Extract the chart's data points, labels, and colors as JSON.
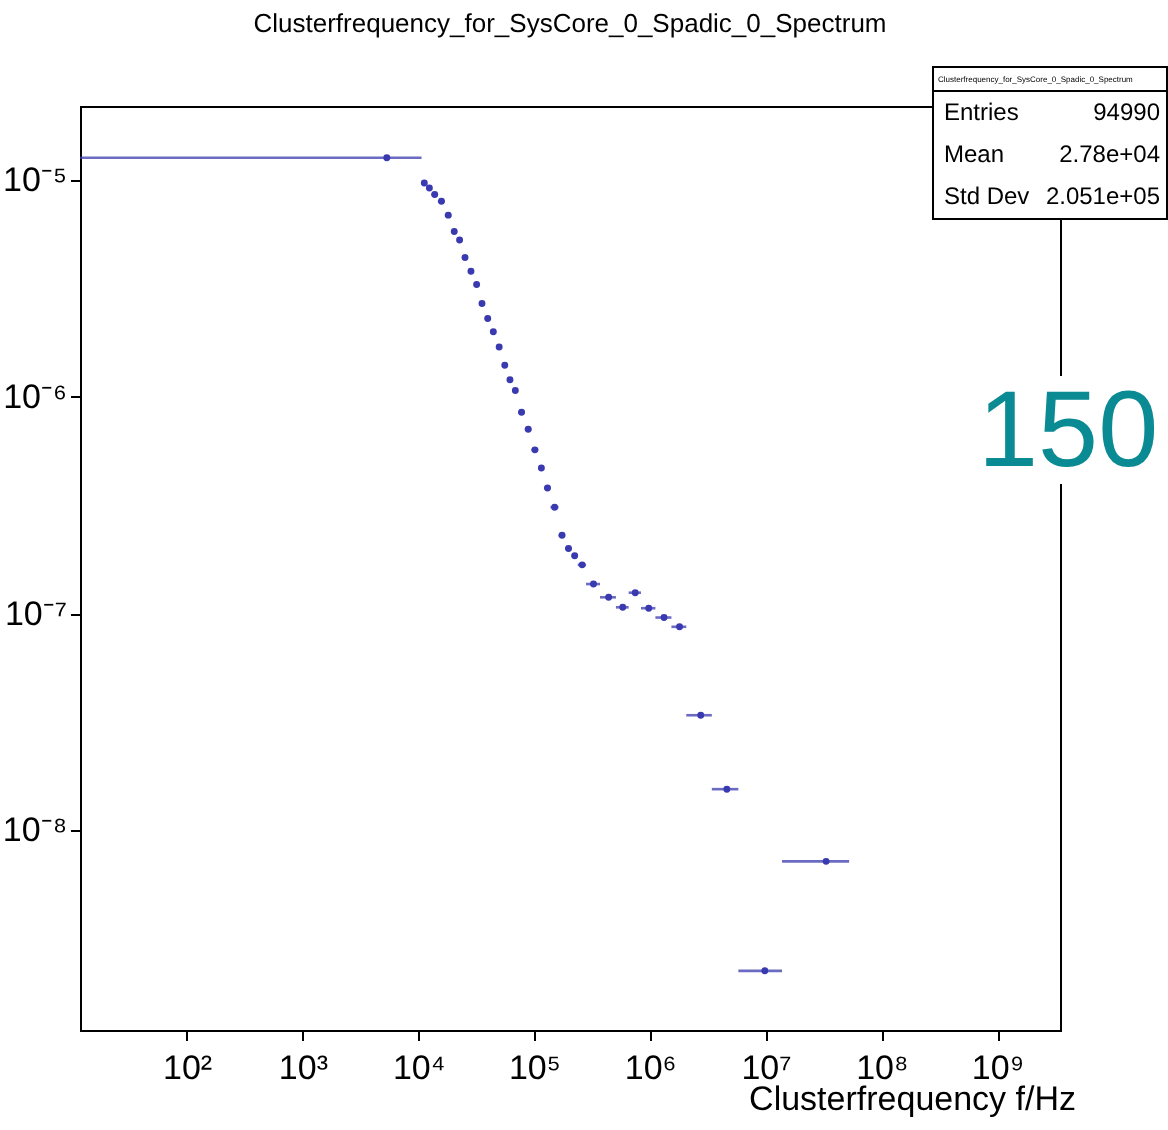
{
  "chart_data": {
    "type": "scatter",
    "title": "Clusterfrequency_for_SysCore_0_Spadic_0_Spectrum",
    "xlabel": "Clusterfrequency f/Hz",
    "annotations": [
      "Clusterfrequency_for_SysCore_0_Spadic_0_Spectrum",
      "Entries",
      "94990",
      "Mean",
      "2.78e+04",
      "Std Dev",
      "2.051e+05",
      "150"
    ],
    "x": [
      5360,
      11300.0,
      12500.0,
      13900.0,
      15900.0,
      18200.0,
      20500.0,
      22800.0,
      25400.0,
      28600.0,
      32000.0,
      35600.0,
      39900.0,
      44600.0,
      50100.0,
      56000.0,
      62100.0,
      69100.0,
      78200.0,
      89300.0,
      102000.0,
      116000.0,
      131000.0,
      151000.0,
      175000.0,
      199000.0,
      225000.0,
      261000.0,
      327000.0,
      442000.0,
      585000.0,
      750000.0,
      981000.0,
      1330000.0,
      1810000.0,
      2760000.0,
      4640000.0,
      9870000.0,
      33400000.0
    ],
    "values": [
      1.27e-05,
      9.7e-06,
      9.2e-06,
      8.6e-06,
      8e-06,
      6.9e-06,
      5.8e-06,
      5.3e-06,
      4.4e-06,
      3.8e-06,
      3.3e-06,
      2.7e-06,
      2.3e-06,
      2e-06,
      1.7e-06,
      1.4e-06,
      1.2e-06,
      1.07e-06,
      8.5e-07,
      7.1e-07,
      5.7e-07,
      4.7e-07,
      3.8e-07,
      3.1e-07,
      2.3e-07,
      2e-07,
      1.85e-07,
      1.68e-07,
      1.37e-07,
      1.19e-07,
      1.07e-07,
      1.25e-07,
      1.06e-07,
      9.6e-08,
      8.7e-08,
      3.4e-08,
      1.55e-08,
      2.25e-09,
      7.2e-09
    ],
    "xerrors": [
      [
        12,
        10700.0
      ],
      [
        10700.0,
        11900.0
      ],
      [
        11900.0,
        13000.0
      ],
      [
        13000.0,
        14800.0
      ],
      [
        14800.0,
        17000.0
      ],
      [
        17000.0,
        19300.0
      ],
      [
        19300.0,
        21600.0
      ],
      [
        21600.0,
        23900.0
      ],
      [
        23900.0,
        26900.0
      ],
      [
        26900.0,
        30300.0
      ],
      [
        30300.0,
        33600.0
      ],
      [
        33600.0,
        37600.0
      ],
      [
        37600.0,
        42100.0
      ],
      [
        42100.0,
        47100.0
      ],
      [
        47100.0,
        53000.0
      ],
      [
        53000.0,
        58900.0
      ],
      [
        58900.0,
        65200.0
      ],
      [
        65200.0,
        72900.0
      ],
      [
        72900.0,
        83400.0
      ],
      [
        83400.0,
        95100.0
      ],
      [
        95100.0,
        109000.0
      ],
      [
        109000.0,
        122000.0
      ],
      [
        122000.0,
        139000.0
      ],
      [
        139000.0,
        163000.0
      ],
      [
        163000.0,
        186000.0
      ],
      [
        186000.0,
        211000.0
      ],
      [
        211000.0,
        239000.0
      ],
      [
        239000.0,
        282000.0
      ],
      [
        282000.0,
        372000.0
      ],
      [
        372000.0,
        511000.0
      ],
      [
        511000.0,
        658000.0
      ],
      [
        658000.0,
        841000.0
      ],
      [
        841000.0,
        1120000.0
      ],
      [
        1120000.0,
        1540000.0
      ],
      [
        1540000.0,
        2070000.0
      ],
      [
        2070000.0,
        3440000.0
      ],
      [
        3440000.0,
        5830000.0
      ],
      [
        5830000.0,
        13900000.0
      ],
      [
        13900000.0,
        52800000.0
      ]
    ],
    "color": "#3a3ab0",
    "marker": "circle",
    "log": "xy",
    "grid": false,
    "xlim": [
      12,
      3500000000.0
    ],
    "ylim": [
      1.2e-09,
      2.2e-05
    ],
    "xticks": [
      {
        "value": 100,
        "label": "10²"
      },
      {
        "value": 1000,
        "label": "10³"
      },
      {
        "value": 10000,
        "label": "10⁴"
      },
      {
        "value": 100000,
        "label": "10⁵"
      },
      {
        "value": 1000000,
        "label": "10⁶"
      },
      {
        "value": 10000000,
        "label": "10⁷"
      },
      {
        "value": 100000000,
        "label": "10⁸"
      },
      {
        "value": 1000000000,
        "label": "10⁹"
      }
    ],
    "yticks": [
      {
        "value": 1e-08,
        "label": "10⁻⁸"
      },
      {
        "value": 1e-07,
        "label": "10⁻⁷"
      },
      {
        "value": 1e-06,
        "label": "10⁻⁶"
      },
      {
        "value": 1e-05,
        "label": "10⁻⁵"
      }
    ]
  }
}
